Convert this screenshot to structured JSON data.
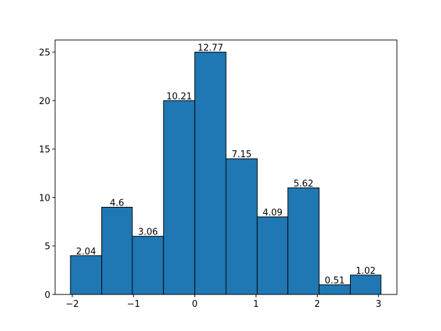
{
  "chart_data": {
    "type": "histogram",
    "bins": [
      -2.03,
      -1.52,
      -1.02,
      -0.51,
      0.0,
      0.51,
      1.02,
      1.52,
      2.03,
      2.54,
      3.04
    ],
    "values": [
      4,
      9,
      6,
      20,
      25,
      14,
      8,
      11,
      1,
      2
    ],
    "bar_labels": [
      2.04,
      4.6,
      3.06,
      10.21,
      12.77,
      7.15,
      4.09,
      5.62,
      0.51,
      1.02
    ],
    "color": "#1f77b4",
    "edgecolor": "#000000",
    "xlim": [
      -2.28,
      3.3
    ],
    "xticks": [
      {
        "value": -2,
        "label": "−2"
      },
      {
        "value": -1,
        "label": "−1"
      },
      0,
      1,
      2,
      3
    ],
    "ylim": [
      0,
      26.25
    ],
    "yticks": [
      0,
      5,
      10,
      15,
      20,
      25
    ]
  }
}
